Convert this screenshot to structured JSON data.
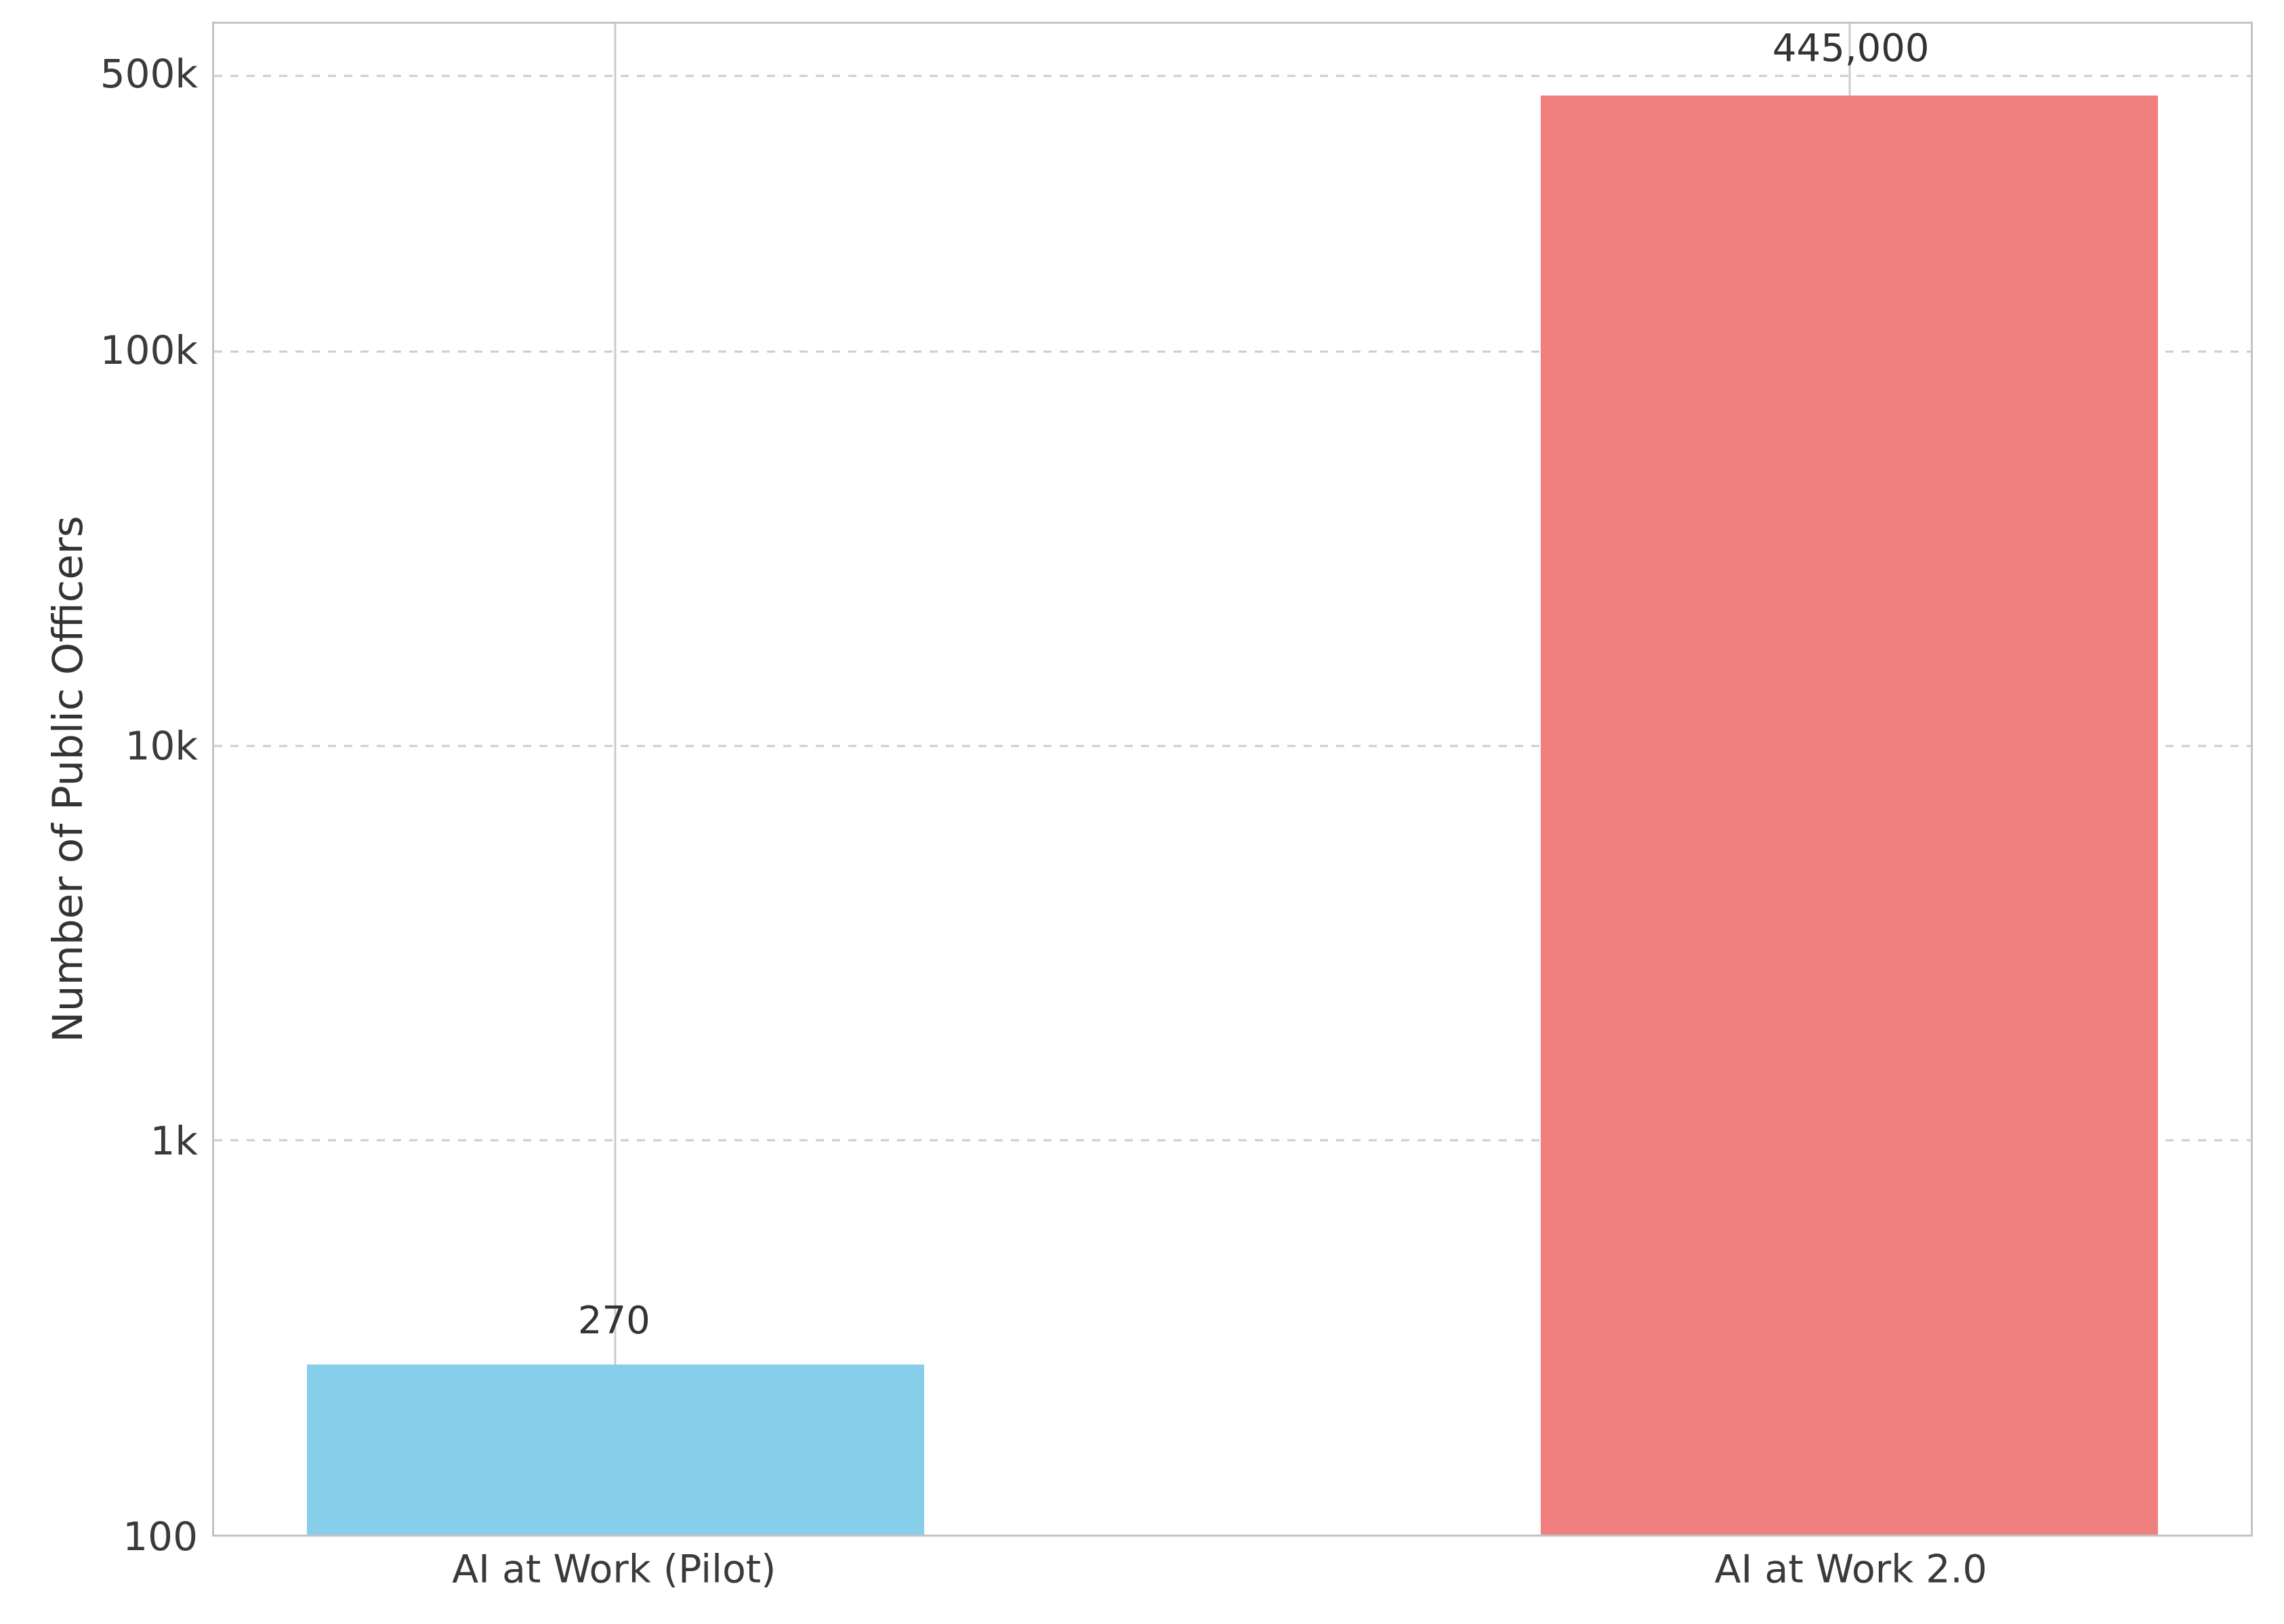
{
  "chart_data": {
    "type": "bar",
    "title": "",
    "categories": [
      "AI at Work (Pilot)",
      "AI at Work 2.0"
    ],
    "values": [
      270,
      445000
    ],
    "value_labels": [
      "270",
      "445,000"
    ],
    "bar_colors": [
      "#87CEEB",
      "#F08080"
    ],
    "xlabel": "",
    "ylabel": "Number of Public Officers",
    "yscale": "log",
    "ylim": [
      100,
      677000
    ],
    "yticks": [
      {
        "value": 100,
        "label": "100"
      },
      {
        "value": 1000,
        "label": "1k"
      },
      {
        "value": 10000,
        "label": "10k"
      },
      {
        "value": 100000,
        "label": "100k"
      },
      {
        "value": 500000,
        "label": "500k"
      }
    ],
    "grid": {
      "y_style": "dashed",
      "x_style": "solid",
      "color": "#cccccc"
    },
    "spine_color": "#c3c3c3",
    "text_color": "#3a3a3a",
    "background": "#ffffff",
    "legend": null
  }
}
